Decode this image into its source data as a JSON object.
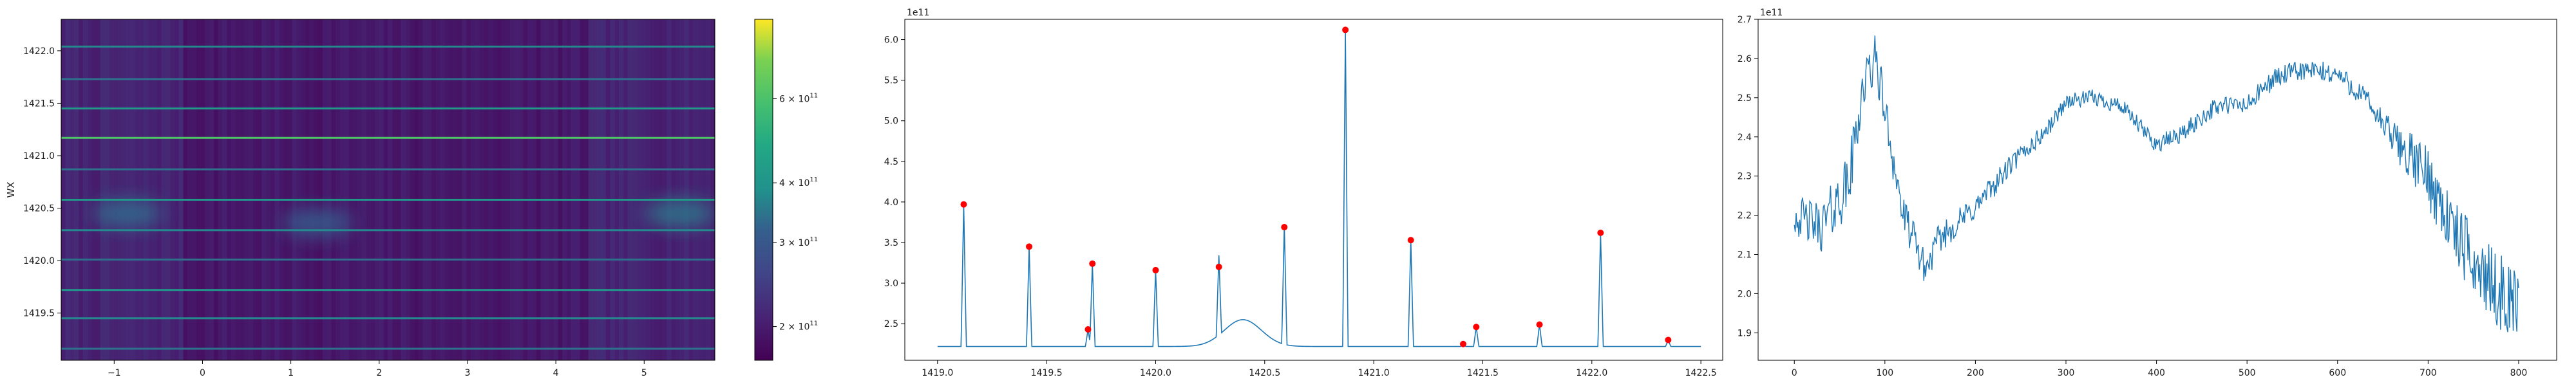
{
  "chart_data": [
    {
      "type": "heatmap",
      "title": "",
      "xlabel": "",
      "ylabel": "WX",
      "xlim": [
        -1.6,
        5.8
      ],
      "ylim": [
        1419.05,
        1422.3
      ],
      "x_ticks": [
        "−1",
        "0",
        "1",
        "2",
        "3",
        "4",
        "5"
      ],
      "y_ticks": [
        "1419.5",
        "1420.0",
        "1420.5",
        "1421.0",
        "1421.5",
        "1422.0"
      ],
      "colorscale": "viridis",
      "clim": [
        170000000000,
        880000000000
      ],
      "colorbar_ticks": [
        "2 × 10",
        "3 × 10",
        "4 × 10",
        "6 × 10"
      ],
      "colorbar_exponent": "11",
      "bright_rows_wx": [
        1419.16,
        1419.45,
        1419.72,
        1420.01,
        1420.29,
        1420.58,
        1420.87,
        1421.17,
        1421.45,
        1421.73,
        1422.04
      ],
      "blobs": [
        {
          "x": -0.85,
          "wx": 1420.45,
          "level": 0.42
        },
        {
          "x": 1.3,
          "wx": 1420.36,
          "level": 0.38
        },
        {
          "x": 5.4,
          "wx": 1420.45,
          "level": 0.45
        }
      ]
    },
    {
      "type": "line",
      "title": "",
      "xlabel": "",
      "ylabel": "",
      "y_offset_label": "1e11",
      "xlim": [
        1418.85,
        1422.6
      ],
      "ylim": [
        2.05,
        6.25
      ],
      "x_ticks": [
        "1419.0",
        "1419.5",
        "1420.0",
        "1420.5",
        "1421.0",
        "1421.5",
        "1422.0",
        "1422.5"
      ],
      "y_ticks": [
        "2.5",
        "3.0",
        "3.5",
        "4.0",
        "4.5",
        "5.0",
        "5.5",
        "6.0"
      ],
      "baseline": 2.22,
      "x_start": 1419.0,
      "x_end": 1422.5,
      "peaks": [
        {
          "x": 1419.12,
          "y": 3.97
        },
        {
          "x": 1419.42,
          "y": 3.45
        },
        {
          "x": 1419.69,
          "y": 2.43
        },
        {
          "x": 1419.71,
          "y": 3.24
        },
        {
          "x": 1420.0,
          "y": 3.16
        },
        {
          "x": 1420.29,
          "y": 3.2
        },
        {
          "x": 1420.59,
          "y": 3.69
        },
        {
          "x": 1420.87,
          "y": 6.12
        },
        {
          "x": 1421.17,
          "y": 3.53
        },
        {
          "x": 1421.41,
          "y": 2.25
        },
        {
          "x": 1421.47,
          "y": 2.46
        },
        {
          "x": 1421.76,
          "y": 2.49
        },
        {
          "x": 1422.04,
          "y": 3.62
        },
        {
          "x": 1422.35,
          "y": 2.3
        }
      ],
      "hump": {
        "x": 1420.4,
        "y": 2.55
      },
      "marker_color": "#ff0000",
      "line_color": "#1f77b4"
    },
    {
      "type": "line",
      "title": "",
      "xlabel": "",
      "ylabel": "",
      "y_offset_label": "1e11",
      "xlim": [
        -40,
        842
      ],
      "ylim": [
        1.83,
        2.7
      ],
      "x_ticks": [
        "0",
        "100",
        "200",
        "300",
        "400",
        "500",
        "600",
        "700",
        "800"
      ],
      "y_ticks": [
        "1.9",
        "2.0",
        "2.1",
        "2.2",
        "2.3",
        "2.4",
        "2.5",
        "2.6",
        "2.7"
      ],
      "n_points": 801,
      "trend_x": [
        0,
        30,
        60,
        75,
        90,
        105,
        120,
        135,
        145,
        160,
        200,
        240,
        280,
        300,
        330,
        360,
        400,
        430,
        455,
        470,
        500,
        530,
        560,
        600,
        630,
        660,
        700,
        730,
        760,
        790,
        800
      ],
      "trend_y": [
        2.2,
        2.17,
        2.28,
        2.52,
        2.6,
        2.4,
        2.2,
        2.12,
        2.06,
        2.14,
        2.22,
        2.33,
        2.42,
        2.49,
        2.5,
        2.48,
        2.38,
        2.41,
        2.46,
        2.48,
        2.48,
        2.55,
        2.57,
        2.56,
        2.5,
        2.4,
        2.3,
        2.15,
        2.05,
        1.98,
        1.99
      ],
      "noise_amp_x": [
        0,
        60,
        100,
        150,
        300,
        640,
        700,
        800
      ],
      "noise_amp": [
        0.05,
        0.08,
        0.06,
        0.04,
        0.02,
        0.03,
        0.08,
        0.1
      ],
      "line_color": "#1f77b4"
    }
  ]
}
